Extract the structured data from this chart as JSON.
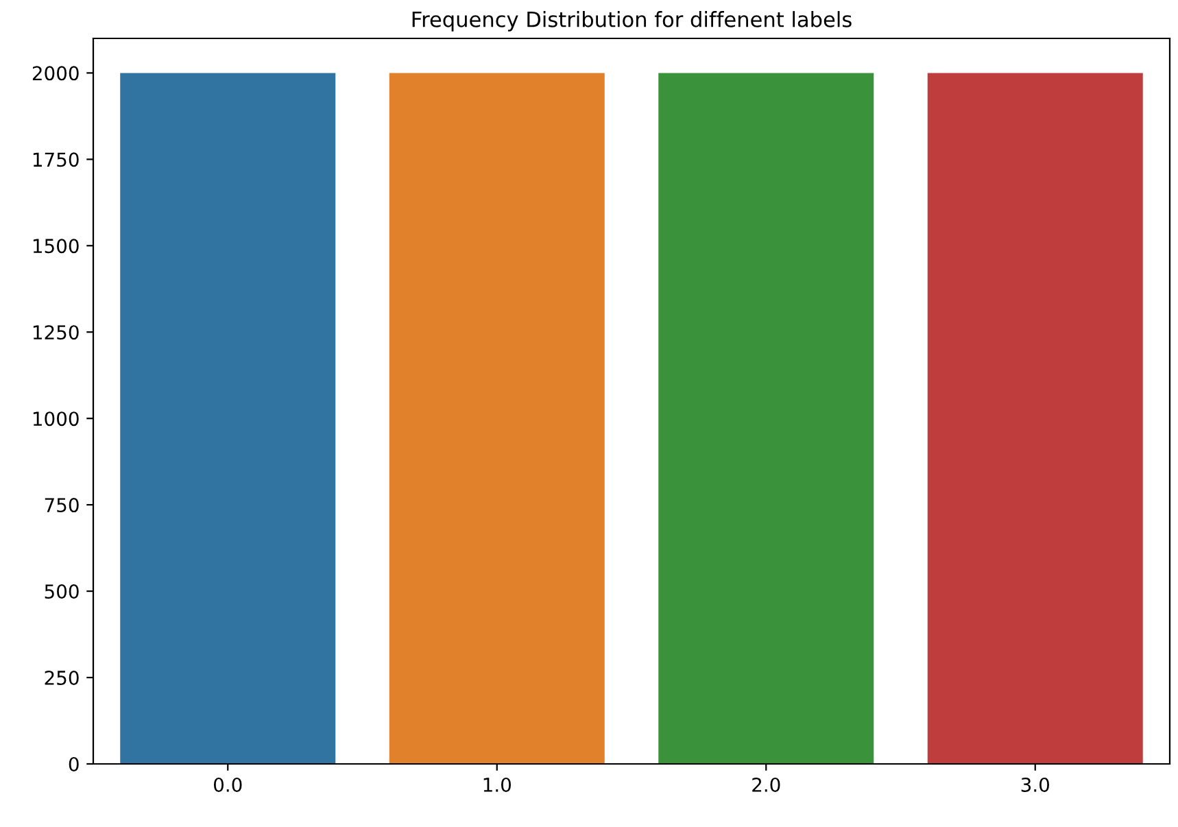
{
  "chart_data": {
    "type": "bar",
    "title": "Frequency Distribution for diffenent labels",
    "categories": [
      "0.0",
      "1.0",
      "2.0",
      "3.0"
    ],
    "values": [
      2000,
      2000,
      2000,
      2000
    ],
    "colors": [
      "#3274a1",
      "#e1812c",
      "#3a923a",
      "#c03d3e"
    ],
    "ylim": [
      0,
      2100
    ],
    "yticks": [
      0,
      250,
      500,
      750,
      1000,
      1250,
      1500,
      1750,
      2000
    ],
    "grid": false
  }
}
